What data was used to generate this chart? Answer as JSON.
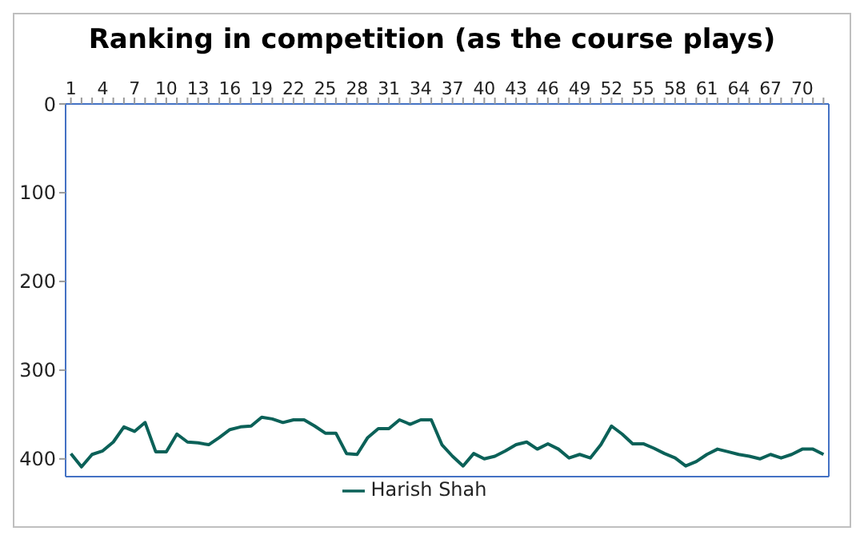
{
  "chart_data": {
    "type": "line",
    "title": "Ranking in competition (as the course plays)",
    "categories": [
      "1",
      null,
      null,
      "4",
      null,
      null,
      "7",
      null,
      null,
      "10",
      null,
      null,
      "13",
      null,
      null,
      "16",
      null,
      null,
      "19",
      null,
      null,
      "22",
      null,
      null,
      "25",
      null,
      null,
      "28",
      null,
      null,
      "31",
      null,
      null,
      "34",
      null,
      null,
      "37",
      null,
      null,
      "40",
      null,
      null,
      "43",
      null,
      null,
      "46",
      null,
      null,
      "49",
      null,
      null,
      "52",
      null,
      null,
      "55",
      null,
      null,
      "58",
      null,
      null,
      "61",
      null,
      null,
      "64",
      null,
      null,
      "67",
      null,
      null,
      "70",
      null,
      null
    ],
    "series": [
      {
        "name": "Harish Shah",
        "color": "#0b6158",
        "values": [
          394,
          409,
          395,
          391,
          381,
          364,
          369,
          359,
          392,
          392,
          372,
          381,
          382,
          384,
          376,
          367,
          364,
          363,
          353,
          355,
          359,
          356,
          356,
          363,
          371,
          371,
          394,
          395,
          376,
          366,
          366,
          356,
          361,
          356,
          356,
          384,
          397,
          408,
          394,
          400,
          397,
          391,
          384,
          381,
          389,
          383,
          389,
          399,
          395,
          399,
          384,
          363,
          372,
          383,
          383,
          388,
          394,
          399,
          408,
          403,
          395,
          389,
          392,
          395,
          397,
          400,
          395,
          399,
          395,
          389,
          389,
          395
        ]
      }
    ],
    "ylim": [
      420,
      0
    ],
    "yticks": [
      0,
      100,
      200,
      300,
      400
    ],
    "legend": "bottom",
    "marker": "none",
    "line_style": "solid"
  }
}
